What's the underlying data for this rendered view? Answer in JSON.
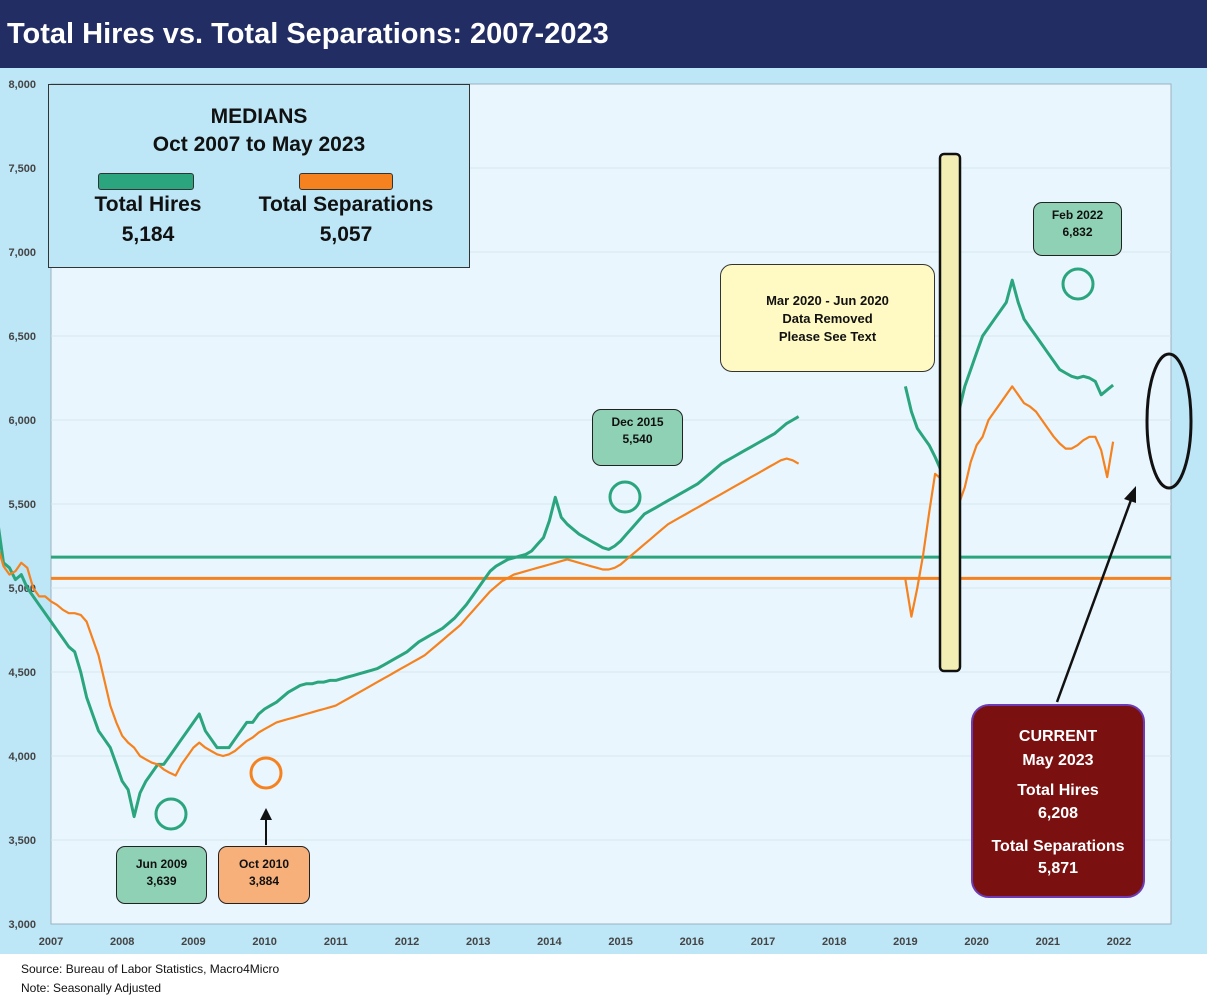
{
  "title": "Total Hires vs. Total Separations: 2007-2023",
  "footer": {
    "source": "Source: Bureau of Labor Statistics, Macro4Micro",
    "note": "Note: Seasonally Adjusted"
  },
  "medians_box": {
    "heading": "MEDIANS",
    "period": "Oct 2007 to May 2023",
    "hires_label": "Total Hires",
    "hires_value": "5,184",
    "separations_label": "Total Separations",
    "separations_value": "5,057"
  },
  "callouts": {
    "dec2015": {
      "label": "Dec 2015",
      "value": "5,540"
    },
    "jun2009": {
      "label": "Jun 2009",
      "value": "3,639"
    },
    "oct2010": {
      "label": "Oct 2010",
      "value": "3,884"
    },
    "feb2022": {
      "label": "Feb 2022",
      "value": "6,832"
    },
    "covid": {
      "line1": "Mar 2020 - Jun 2020",
      "line2": "Data Removed",
      "line3": "Please See Text"
    }
  },
  "current_box": {
    "heading": "CURRENT",
    "date": "May 2023",
    "hires_label": "Total Hires",
    "hires_value": "6,208",
    "separations_label": "Total Separations",
    "separations_value": "5,871"
  },
  "colors": {
    "hires": "#2aa57d",
    "separations": "#f5821f",
    "plot_background": "#e9f6fd",
    "frame_background": "#bde6f7",
    "title_bar": "#222d64",
    "current_box": "#7b1010",
    "callout_green": "#8fd1b5",
    "callout_orange": "#f8b07a",
    "covid_box": "#fffac4",
    "gap_bar": "#f3efb4"
  },
  "chart_data": {
    "type": "line",
    "x_tick_labels": [
      "2007",
      "2008",
      "2009",
      "2010",
      "2011",
      "2012",
      "2013",
      "2014",
      "2015",
      "2016",
      "2017",
      "2018",
      "2019",
      "2020",
      "2021",
      "2022"
    ],
    "y_tick_labels": [
      "3,000",
      "3,500",
      "4,000",
      "4,500",
      "5,000",
      "5,500",
      "6,000",
      "6,500",
      "7,000",
      "7,500",
      "8,000"
    ],
    "ylim": [
      3000,
      8000
    ],
    "legend": "none",
    "medians": {
      "hires": 5184,
      "separations": 5057
    },
    "series": [
      {
        "name": "Total Hires",
        "color": "#2aa57d",
        "segments": [
          {
            "start": "2007-10",
            "values": [
              5400,
              5150,
              5120,
              5050,
              5080,
              5000,
              4950,
              4900,
              4850,
              4800,
              4750,
              4700,
              4650,
              4620,
              4500,
              4350,
              4250,
              4150,
              4100,
              4050,
              3950,
              3850,
              3800,
              3639,
              3780,
              3850,
              3900,
              3950,
              3950,
              4000,
              4050,
              4100,
              4150,
              4200,
              4250,
              4150,
              4100,
              4050,
              4050,
              4050,
              4100,
              4150,
              4200,
              4200,
              4250,
              4280,
              4300,
              4320,
              4350,
              4380,
              4400,
              4420,
              4430,
              4430,
              4440,
              4440,
              4450,
              4450,
              4460,
              4470,
              4480,
              4490,
              4500,
              4510,
              4520,
              4540,
              4560,
              4580,
              4600,
              4620,
              4650,
              4680,
              4700,
              4720,
              4740,
              4760,
              4790,
              4820,
              4860,
              4900,
              4950,
              5000,
              5050,
              5100,
              5130,
              5150,
              5170,
              5180,
              5190,
              5200,
              5220,
              5260,
              5300,
              5400,
              5540,
              5420,
              5380,
              5350,
              5320,
              5300,
              5280,
              5260,
              5240,
              5230,
              5250,
              5280,
              5320,
              5360,
              5400,
              5440,
              5460,
              5480,
              5500,
              5520,
              5540,
              5560,
              5580,
              5600,
              5620,
              5650,
              5680,
              5710,
              5740,
              5760,
              5780,
              5800,
              5820,
              5840,
              5860,
              5880,
              5900,
              5920,
              5950,
              5980,
              6000,
              6020
            ]
          },
          {
            "start": "2020-07",
            "values": [
              6200,
              6050,
              5950,
              5900,
              5850,
              5780,
              5700,
              5780,
              5900,
              6050,
              6200,
              6300,
              6400,
              6500,
              6550,
              6600,
              6650,
              6700,
              6832,
              6700,
              6600,
              6550,
              6500,
              6450,
              6400,
              6350,
              6300,
              6280,
              6260,
              6250,
              6260,
              6250,
              6230,
              6150,
              6180,
              6208
            ]
          }
        ]
      },
      {
        "name": "Total Separations",
        "color": "#f5821f",
        "segments": [
          {
            "start": "2007-10",
            "values": [
              5250,
              5130,
              5080,
              5100,
              5150,
              5120,
              5000,
              4950,
              4950,
              4920,
              4900,
              4870,
              4850,
              4850,
              4840,
              4800,
              4700,
              4600,
              4450,
              4300,
              4200,
              4120,
              4080,
              4050,
              4000,
              3980,
              3960,
              3950,
              3920,
              3900,
              3884,
              3950,
              4000,
              4050,
              4080,
              4050,
              4030,
              4010,
              4000,
              4010,
              4030,
              4060,
              4090,
              4110,
              4140,
              4160,
              4180,
              4200,
              4210,
              4220,
              4230,
              4240,
              4250,
              4260,
              4270,
              4280,
              4290,
              4300,
              4320,
              4340,
              4360,
              4380,
              4400,
              4420,
              4440,
              4460,
              4480,
              4500,
              4520,
              4540,
              4560,
              4580,
              4600,
              4630,
              4660,
              4690,
              4720,
              4750,
              4780,
              4820,
              4860,
              4900,
              4940,
              4980,
              5010,
              5040,
              5060,
              5080,
              5090,
              5100,
              5110,
              5120,
              5130,
              5140,
              5150,
              5160,
              5170,
              5160,
              5150,
              5140,
              5130,
              5120,
              5110,
              5110,
              5120,
              5140,
              5170,
              5200,
              5230,
              5260,
              5290,
              5320,
              5350,
              5380,
              5400,
              5420,
              5440,
              5460,
              5480,
              5500,
              5520,
              5540,
              5560,
              5580,
              5600,
              5620,
              5640,
              5660,
              5680,
              5700,
              5720,
              5740,
              5760,
              5770,
              5760,
              5740
            ]
          },
          {
            "start": "2020-07",
            "values": [
              5050,
              4830,
              5000,
              5200,
              5450,
              5680,
              5650,
              5200,
              5350,
              5500,
              5600,
              5750,
              5850,
              5900,
              6000,
              6050,
              6100,
              6150,
              6200,
              6150,
              6100,
              6080,
              6050,
              6000,
              5950,
              5900,
              5860,
              5830,
              5830,
              5850,
              5880,
              5900,
              5900,
              5820,
              5660,
              5871
            ]
          }
        ]
      }
    ]
  }
}
